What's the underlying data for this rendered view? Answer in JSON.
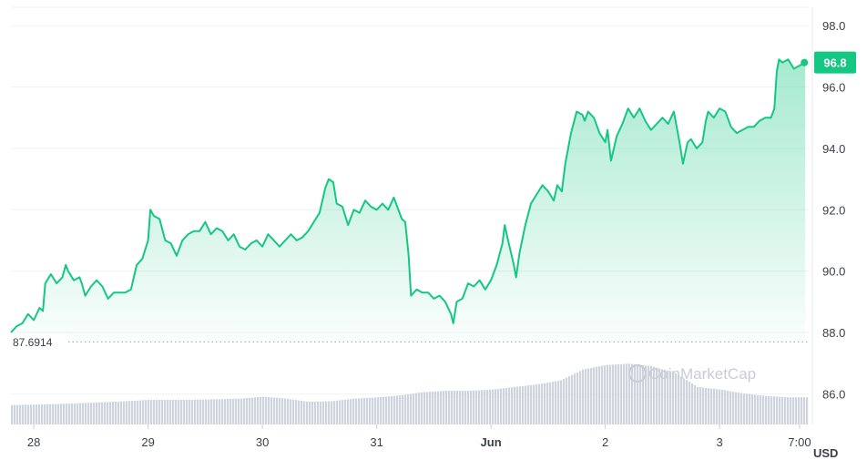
{
  "chart_data": {
    "type": "area",
    "currency": "USD",
    "current_price_label": "96.8",
    "open_price_label": "87.6914",
    "watermark": "CoinMarketCap",
    "ylim": [
      85,
      98.6
    ],
    "yticks": [
      "86.0",
      "88.0",
      "90.0",
      "92.0",
      "94.0",
      "96.0",
      "98.0"
    ],
    "xticks": [
      {
        "label": "28",
        "t": 0.2,
        "bold": false
      },
      {
        "label": "29",
        "t": 1.2,
        "bold": false
      },
      {
        "label": "30",
        "t": 2.2,
        "bold": false
      },
      {
        "label": "31",
        "t": 3.2,
        "bold": false
      },
      {
        "label": "Jun",
        "t": 4.2,
        "bold": true
      },
      {
        "label": "2",
        "t": 5.2,
        "bold": false
      },
      {
        "label": "3",
        "t": 6.2,
        "bold": false
      },
      {
        "label": "7:00",
        "t": 6.9,
        "bold": false
      }
    ],
    "x_range": [
      0,
      6.98
    ],
    "price_series": [
      [
        0.0,
        88.0
      ],
      [
        0.05,
        88.2
      ],
      [
        0.1,
        88.3
      ],
      [
        0.15,
        88.6
      ],
      [
        0.2,
        88.4
      ],
      [
        0.25,
        88.8
      ],
      [
        0.28,
        88.7
      ],
      [
        0.3,
        89.6
      ],
      [
        0.35,
        89.9
      ],
      [
        0.4,
        89.6
      ],
      [
        0.45,
        89.8
      ],
      [
        0.48,
        90.2
      ],
      [
        0.5,
        90.0
      ],
      [
        0.55,
        89.7
      ],
      [
        0.6,
        89.8
      ],
      [
        0.62,
        89.6
      ],
      [
        0.65,
        89.2
      ],
      [
        0.7,
        89.5
      ],
      [
        0.75,
        89.7
      ],
      [
        0.8,
        89.5
      ],
      [
        0.85,
        89.1
      ],
      [
        0.9,
        89.3
      ],
      [
        0.95,
        89.3
      ],
      [
        1.0,
        89.3
      ],
      [
        1.05,
        89.4
      ],
      [
        1.1,
        90.2
      ],
      [
        1.15,
        90.4
      ],
      [
        1.2,
        91.0
      ],
      [
        1.22,
        92.0
      ],
      [
        1.25,
        91.8
      ],
      [
        1.3,
        91.7
      ],
      [
        1.35,
        91.0
      ],
      [
        1.4,
        90.9
      ],
      [
        1.45,
        90.5
      ],
      [
        1.5,
        91.0
      ],
      [
        1.55,
        91.2
      ],
      [
        1.6,
        91.3
      ],
      [
        1.65,
        91.3
      ],
      [
        1.7,
        91.6
      ],
      [
        1.75,
        91.2
      ],
      [
        1.8,
        91.4
      ],
      [
        1.85,
        91.3
      ],
      [
        1.9,
        91.0
      ],
      [
        1.95,
        91.2
      ],
      [
        2.0,
        90.8
      ],
      [
        2.05,
        90.7
      ],
      [
        2.1,
        90.9
      ],
      [
        2.15,
        91.0
      ],
      [
        2.2,
        90.8
      ],
      [
        2.25,
        91.2
      ],
      [
        2.3,
        91.0
      ],
      [
        2.35,
        90.8
      ],
      [
        2.4,
        91.0
      ],
      [
        2.45,
        91.2
      ],
      [
        2.5,
        91.0
      ],
      [
        2.55,
        91.1
      ],
      [
        2.6,
        91.3
      ],
      [
        2.65,
        91.6
      ],
      [
        2.7,
        91.9
      ],
      [
        2.75,
        92.7
      ],
      [
        2.78,
        93.0
      ],
      [
        2.82,
        92.9
      ],
      [
        2.85,
        92.2
      ],
      [
        2.9,
        92.1
      ],
      [
        2.95,
        91.5
      ],
      [
        3.0,
        92.0
      ],
      [
        3.05,
        91.9
      ],
      [
        3.1,
        92.3
      ],
      [
        3.15,
        92.1
      ],
      [
        3.2,
        92.0
      ],
      [
        3.25,
        92.2
      ],
      [
        3.3,
        92.0
      ],
      [
        3.35,
        92.4
      ],
      [
        3.4,
        91.9
      ],
      [
        3.42,
        91.7
      ],
      [
        3.45,
        91.6
      ],
      [
        3.48,
        90.5
      ],
      [
        3.5,
        89.2
      ],
      [
        3.55,
        89.4
      ],
      [
        3.6,
        89.3
      ],
      [
        3.65,
        89.3
      ],
      [
        3.7,
        89.1
      ],
      [
        3.75,
        89.2
      ],
      [
        3.8,
        89.0
      ],
      [
        3.85,
        88.6
      ],
      [
        3.87,
        88.3
      ],
      [
        3.9,
        89.0
      ],
      [
        3.95,
        89.1
      ],
      [
        4.0,
        89.6
      ],
      [
        4.05,
        89.5
      ],
      [
        4.1,
        89.7
      ],
      [
        4.15,
        89.4
      ],
      [
        4.2,
        89.7
      ],
      [
        4.25,
        90.2
      ],
      [
        4.3,
        90.9
      ],
      [
        4.32,
        91.5
      ],
      [
        4.35,
        91.0
      ],
      [
        4.4,
        90.2
      ],
      [
        4.42,
        89.8
      ],
      [
        4.45,
        90.6
      ],
      [
        4.5,
        91.5
      ],
      [
        4.55,
        92.2
      ],
      [
        4.6,
        92.5
      ],
      [
        4.65,
        92.8
      ],
      [
        4.7,
        92.6
      ],
      [
        4.75,
        92.3
      ],
      [
        4.78,
        92.8
      ],
      [
        4.82,
        92.6
      ],
      [
        4.85,
        93.5
      ],
      [
        4.9,
        94.5
      ],
      [
        4.95,
        95.2
      ],
      [
        5.0,
        95.1
      ],
      [
        5.02,
        94.9
      ],
      [
        5.05,
        95.2
      ],
      [
        5.1,
        95.0
      ],
      [
        5.15,
        94.5
      ],
      [
        5.2,
        94.2
      ],
      [
        5.22,
        94.6
      ],
      [
        5.25,
        93.6
      ],
      [
        5.3,
        94.4
      ],
      [
        5.35,
        94.8
      ],
      [
        5.4,
        95.3
      ],
      [
        5.45,
        95.0
      ],
      [
        5.5,
        95.3
      ],
      [
        5.55,
        94.9
      ],
      [
        5.6,
        94.6
      ],
      [
        5.65,
        94.8
      ],
      [
        5.7,
        95.0
      ],
      [
        5.75,
        94.8
      ],
      [
        5.8,
        95.2
      ],
      [
        5.85,
        94.2
      ],
      [
        5.88,
        93.5
      ],
      [
        5.92,
        94.2
      ],
      [
        5.95,
        94.3
      ],
      [
        6.0,
        94.0
      ],
      [
        6.05,
        94.2
      ],
      [
        6.08,
        94.9
      ],
      [
        6.1,
        95.2
      ],
      [
        6.15,
        95.0
      ],
      [
        6.2,
        95.3
      ],
      [
        6.25,
        95.2
      ],
      [
        6.3,
        94.7
      ],
      [
        6.35,
        94.5
      ],
      [
        6.4,
        94.6
      ],
      [
        6.45,
        94.7
      ],
      [
        6.5,
        94.7
      ],
      [
        6.55,
        94.9
      ],
      [
        6.6,
        95.0
      ],
      [
        6.65,
        95.0
      ],
      [
        6.68,
        95.3
      ],
      [
        6.7,
        96.5
      ],
      [
        6.72,
        96.9
      ],
      [
        6.75,
        96.8
      ],
      [
        6.8,
        96.9
      ],
      [
        6.85,
        96.6
      ],
      [
        6.9,
        96.7
      ],
      [
        6.95,
        96.8
      ]
    ],
    "volume_series": [
      [
        0.0,
        0.3
      ],
      [
        0.3,
        0.31
      ],
      [
        0.6,
        0.33
      ],
      [
        0.9,
        0.35
      ],
      [
        1.2,
        0.38
      ],
      [
        1.5,
        0.38
      ],
      [
        1.8,
        0.39
      ],
      [
        2.0,
        0.4
      ],
      [
        2.2,
        0.43
      ],
      [
        2.4,
        0.4
      ],
      [
        2.6,
        0.35
      ],
      [
        2.8,
        0.36
      ],
      [
        3.0,
        0.4
      ],
      [
        3.2,
        0.42
      ],
      [
        3.4,
        0.45
      ],
      [
        3.6,
        0.5
      ],
      [
        3.8,
        0.52
      ],
      [
        4.0,
        0.52
      ],
      [
        4.2,
        0.54
      ],
      [
        4.4,
        0.58
      ],
      [
        4.6,
        0.62
      ],
      [
        4.8,
        0.68
      ],
      [
        5.0,
        0.85
      ],
      [
        5.2,
        0.92
      ],
      [
        5.4,
        0.94
      ],
      [
        5.6,
        0.9
      ],
      [
        5.8,
        0.8
      ],
      [
        6.0,
        0.58
      ],
      [
        6.2,
        0.54
      ],
      [
        6.4,
        0.48
      ],
      [
        6.6,
        0.44
      ],
      [
        6.8,
        0.42
      ],
      [
        6.98,
        0.42
      ]
    ],
    "colors": {
      "line": "#16c784",
      "fill_top": "#16c784",
      "grid": "#eff2f5",
      "volume": "#ced3de",
      "dotted": "#9aa0ac"
    }
  }
}
